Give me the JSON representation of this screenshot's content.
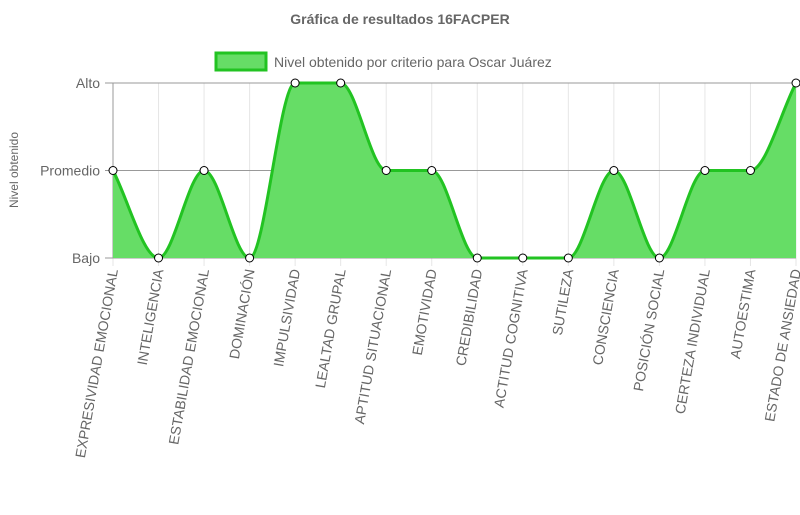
{
  "chart_data": {
    "type": "area",
    "title": "Gráfica de resultados 16FACPER",
    "ylabel": "Nivel obtenido",
    "xlabel": "",
    "y_levels": [
      "Bajo",
      "Promedio",
      "Alto"
    ],
    "ylim": [
      0,
      2
    ],
    "legend_position": "top",
    "grid": true,
    "categories": [
      "EXPRESIVIDAD EMOCIONAL",
      "INTELIGENCIA",
      "ESTABILIDAD EMOCIONAL",
      "DOMINACIÓN",
      "IMPULSIVIDAD",
      "LEALTAD GRUPAL",
      "APTITUD SITUACIONAL",
      "EMOTIVIDAD",
      "CREDIBILIDAD",
      "ACTITUD COGNITIVA",
      "SUTILEZA",
      "CONSCIENCIA",
      "POSICIÓN SOCIAL",
      "CERTEZA INDIVIDUAL",
      "AUTOESTIMA",
      "ESTADO DE ANSIEDAD"
    ],
    "series": [
      {
        "name": "Nivel obtenido por criterio para Oscar Juárez",
        "values": [
          1,
          0,
          1,
          0,
          2,
          2,
          1,
          1,
          0,
          0,
          0,
          1,
          0,
          1,
          1,
          2
        ],
        "color": "#22c322",
        "fill": "#66dd66"
      }
    ]
  }
}
